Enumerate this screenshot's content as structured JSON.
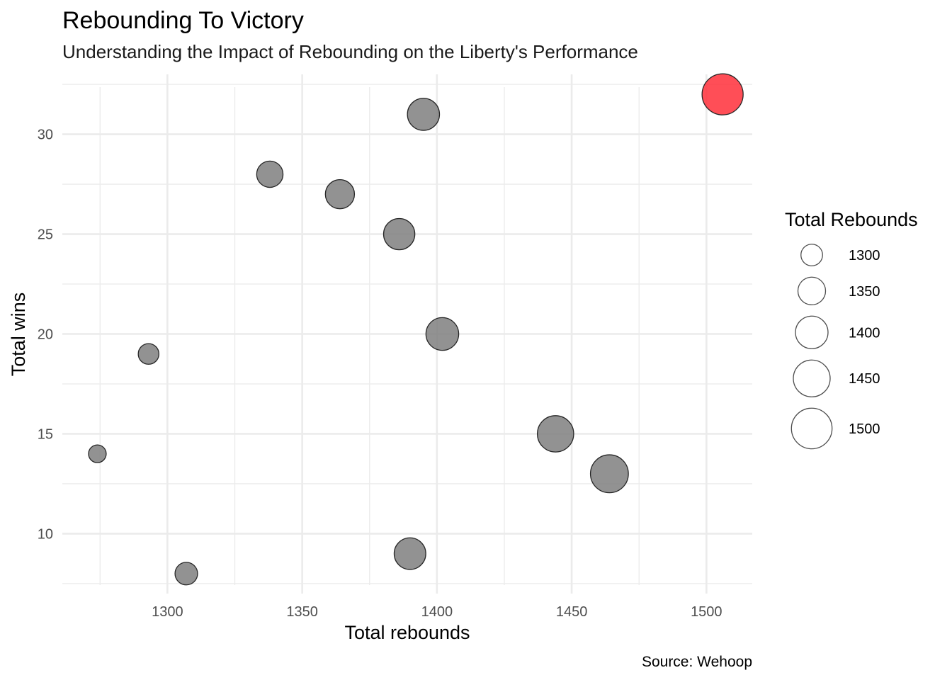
{
  "chart_data": {
    "type": "scatter",
    "title": "Rebounding To Victory",
    "subtitle": "Understanding the Impact of Rebounding on the Liberty's Performance",
    "xlabel": "Total rebounds",
    "ylabel": "Total wins",
    "caption": "Source: Wehoop",
    "xlim": [
      1261,
      1517
    ],
    "ylim": [
      7,
      33
    ],
    "xticks": [
      1300,
      1350,
      1400,
      1450,
      1500
    ],
    "yticks": [
      10,
      15,
      20,
      25,
      30
    ],
    "grid": true,
    "size_encoding": "Total Rebounds",
    "points": [
      {
        "x": 1274,
        "y": 14,
        "size": 1274
      },
      {
        "x": 1293,
        "y": 19,
        "size": 1293
      },
      {
        "x": 1307,
        "y": 8,
        "size": 1307
      },
      {
        "x": 1338,
        "y": 28,
        "size": 1338
      },
      {
        "x": 1364,
        "y": 27,
        "size": 1364
      },
      {
        "x": 1386,
        "y": 25,
        "size": 1386
      },
      {
        "x": 1390,
        "y": 9,
        "size": 1390
      },
      {
        "x": 1395,
        "y": 31,
        "size": 1395
      },
      {
        "x": 1402,
        "y": 20,
        "size": 1402
      },
      {
        "x": 1444,
        "y": 15,
        "size": 1444
      },
      {
        "x": 1464,
        "y": 13,
        "size": 1464
      },
      {
        "x": 1506,
        "y": 32,
        "size": 1506,
        "highlight": true
      }
    ],
    "colors": {
      "default": "#7f7f7f",
      "highlight": "#ff2f3a",
      "stroke": "#262626",
      "grid": "#ebebeb"
    },
    "legend": {
      "title": "Total Rebounds",
      "position": "right",
      "entries": [
        {
          "label": "1300",
          "value": 1300
        },
        {
          "label": "1350",
          "value": 1350
        },
        {
          "label": "1400",
          "value": 1400
        },
        {
          "label": "1450",
          "value": 1450
        },
        {
          "label": "1500",
          "value": 1500
        }
      ]
    }
  }
}
